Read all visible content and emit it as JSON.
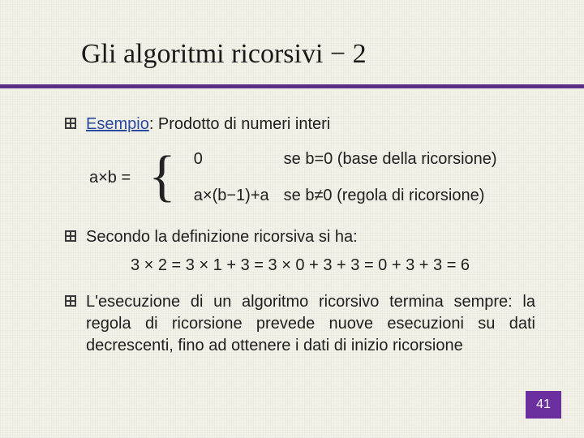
{
  "title": "Gli algoritmi ricorsivi − 2",
  "colors": {
    "rule": "#5b2e87",
    "esempio": "#2a4aa0",
    "pagebox": "#6b2fa0",
    "text": "#202020",
    "background": "#f2f2e8"
  },
  "bullet1": {
    "label": "Esempio",
    "rest": ": Prodotto di numeri interi"
  },
  "formula": {
    "lhs": "a×b =",
    "case1_expr": "0",
    "case1_cond": "se b=0 (base della ricorsione)",
    "case2_expr": "a×(b−1)+a",
    "case2_cond": "se b≠0 (regola di ricorsione)"
  },
  "bullet2": {
    "lead": "Secondo la definizione ricorsiva si ha:",
    "equation": "3 × 2 = 3 × 1 + 3 = 3 × 0 + 3 + 3 = 0 + 3 + 3 = 6"
  },
  "bullet3": {
    "text": "L'esecuzione di un algoritmo ricorsivo termina sempre: la regola di ricorsione prevede nuove esecuzioni su dati decrescenti, fino ad ottenere i dati di inizio ricorsione"
  },
  "page_number": "41"
}
